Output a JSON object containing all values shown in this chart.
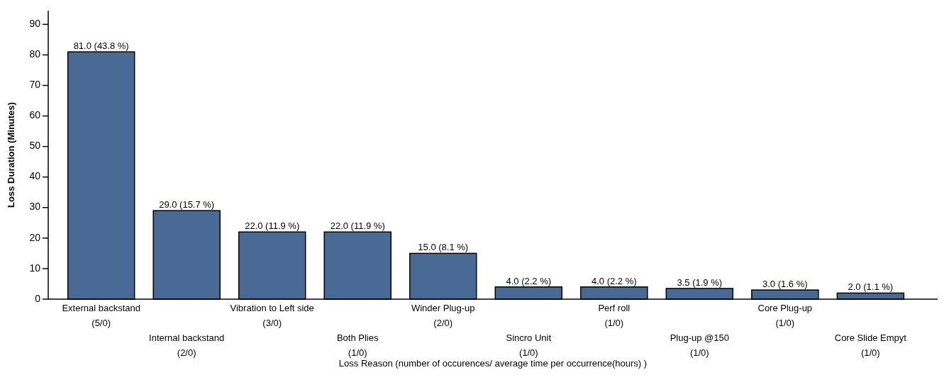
{
  "chart_data": {
    "type": "bar",
    "xlabel": "Loss Reason (number of occurences/ average time per occurrence(hours) )",
    "ylabel": "Loss Duration (Minutes)",
    "categories": [
      "External backstand\n(5/0)",
      "Internal backstand\n(2/0)",
      "Vibration to Left side\n(3/0)",
      "Both Plies\n(1/0)",
      "Winder Plug-up\n(2/0)",
      "Sincro Unit\n(1/0)",
      "Perf roll\n(1/0)",
      "Plug-up @150\n(1/0)",
      "Core Plug-up\n(1/0)",
      "Core Slide Empyt\n(1/0)"
    ],
    "values": [
      81.0,
      29.0,
      22.0,
      22.0,
      15.0,
      4.0,
      4.0,
      3.5,
      3.0,
      2.0
    ],
    "value_labels": [
      "81.0 (43.8 %)",
      "29.0 (15.7 %)",
      "22.0 (11.9 %)",
      "22.0 (11.9 %)",
      "15.0 (8.1 %)",
      "4.0 (2.2 %)",
      "4.0 (2.2 %)",
      "3.5 (1.9 %)",
      "3.0 (1.6 %)",
      "2.0 (1.1 %)"
    ],
    "color": "#4a6a96",
    "ylim": [
      0,
      94.5
    ],
    "yticks": [
      0,
      10,
      20,
      30,
      40,
      50,
      60,
      70,
      80,
      90
    ],
    "grid": false
  }
}
